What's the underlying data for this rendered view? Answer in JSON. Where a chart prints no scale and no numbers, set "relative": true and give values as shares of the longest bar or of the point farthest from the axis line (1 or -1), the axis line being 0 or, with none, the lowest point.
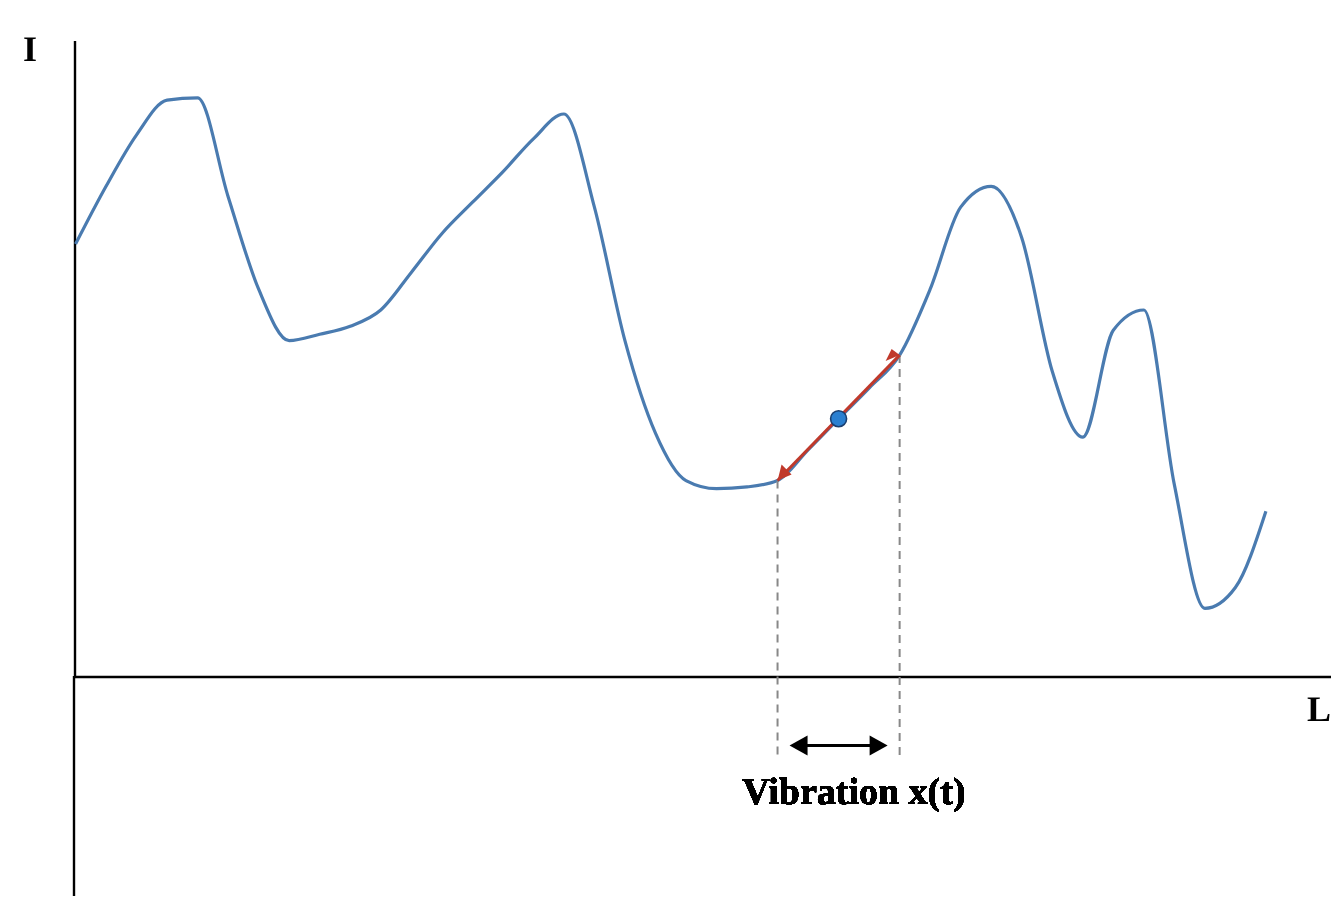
{
  "chart_data": {
    "type": "line",
    "relative": true,
    "xlabel": "L",
    "ylabel": "I",
    "annotations": [
      "Vibration x(t)"
    ],
    "categories": [
      null,
      null,
      null,
      null,
      null,
      null,
      null,
      null,
      null,
      null,
      null,
      null,
      null,
      null,
      null,
      null,
      null,
      null,
      null,
      null,
      null,
      null,
      null,
      null,
      null,
      null,
      null,
      null,
      null,
      null,
      null,
      null,
      null,
      null,
      null,
      null,
      null,
      null,
      null,
      null
    ],
    "series": [
      {
        "color": "#4a7bb0",
        "values": [
          0.747,
          0.847,
          0.936,
          0.996,
          1,
          0.829,
          0.669,
          0.58,
          0.591,
          0.605,
          0.633,
          0.698,
          0.765,
          0.819,
          0.872,
          0.929,
          0.972,
          0.811,
          0.58,
          0.42,
          0.338,
          0.324,
          0.327,
          0.338,
          0.391,
          0.445,
          0.498,
          0.555,
          0.669,
          0.811,
          0.847,
          0.758,
          0.527,
          0.413,
          0.598,
          0.633,
          0.331,
          0.117,
          0.153,
          0.285
        ]
      }
    ]
  }
}
